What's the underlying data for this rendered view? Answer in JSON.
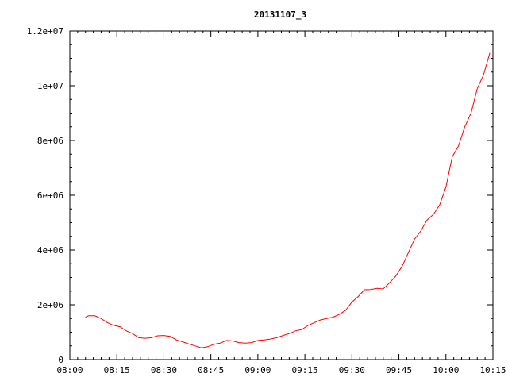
{
  "chart_data": {
    "type": "line",
    "title": "20131107_3",
    "xlabel": "",
    "ylabel": "",
    "x_tick_labels": [
      "08:00",
      "08:15",
      "08:30",
      "08:45",
      "09:00",
      "09:15",
      "09:30",
      "09:45",
      "10:00",
      "10:15"
    ],
    "y_tick_labels": [
      "0",
      "2e+06",
      "4e+06",
      "6e+06",
      "8e+06",
      "1e+07",
      "1.2e+07"
    ],
    "xlim": [
      "08:00",
      "10:15"
    ],
    "ylim": [
      0,
      12000000
    ],
    "grid": false,
    "series_color": "#ff0000",
    "series": [
      {
        "x": [
          "08:05",
          "08:06",
          "08:08",
          "08:10",
          "08:12",
          "08:14",
          "08:16",
          "08:18",
          "08:20",
          "08:22",
          "08:24",
          "08:26",
          "08:28",
          "08:30",
          "08:32",
          "08:34",
          "08:36",
          "08:38",
          "08:40",
          "08:42",
          "08:44",
          "08:46",
          "08:48",
          "08:50",
          "08:52",
          "08:54",
          "08:56",
          "08:58",
          "09:00",
          "09:02",
          "09:04",
          "09:06",
          "09:08",
          "09:10",
          "09:12",
          "09:14",
          "09:16",
          "09:18",
          "09:20",
          "09:22",
          "09:24",
          "09:26",
          "09:28",
          "09:30",
          "09:32",
          "09:34",
          "09:36",
          "09:38",
          "09:40",
          "09:42",
          "09:44",
          "09:46",
          "09:48",
          "09:50",
          "09:52",
          "09:54",
          "09:56",
          "09:58",
          "10:00",
          "10:02",
          "10:04",
          "10:06",
          "10:08",
          "10:10",
          "10:12",
          "10:14"
        ],
        "values": [
          1550000,
          1600000,
          1600000,
          1500000,
          1350000,
          1250000,
          1200000,
          1050000,
          950000,
          800000,
          780000,
          800000,
          870000,
          880000,
          850000,
          720000,
          650000,
          570000,
          500000,
          430000,
          470000,
          560000,
          600000,
          700000,
          680000,
          620000,
          600000,
          620000,
          700000,
          720000,
          750000,
          800000,
          880000,
          950000,
          1050000,
          1100000,
          1250000,
          1350000,
          1450000,
          1500000,
          1550000,
          1650000,
          1800000,
          2100000,
          2300000,
          2550000,
          2560000,
          2600000,
          2580000,
          2800000,
          3050000,
          3400000,
          3900000,
          4400000,
          4700000,
          5100000,
          5300000,
          5650000,
          6300000,
          7400000,
          7800000,
          8500000,
          9000000,
          9900000,
          10400000,
          11200000
        ]
      }
    ]
  }
}
